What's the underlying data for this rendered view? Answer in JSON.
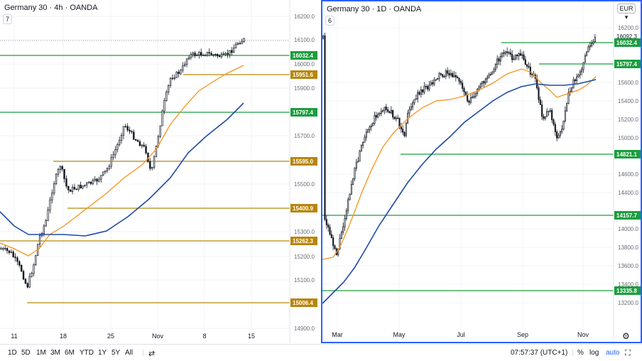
{
  "left_chart": {
    "title": "Germany 30 · 4h · OANDA",
    "indicator_badge": "7",
    "price_ticks": [
      "16200.0",
      "16100.0",
      "16000.0",
      "15900.0",
      "15700.0",
      "15600.0",
      "15500.0",
      "15300.0",
      "15200.0",
      "15100.0",
      "14900.0"
    ],
    "date_ticks": [
      "11",
      "18",
      "25",
      "Nov",
      "8",
      "15"
    ],
    "levels": [
      {
        "label": "16032.4",
        "color": "#1b9e3e"
      },
      {
        "label": "15951.6",
        "color": "#b8860b"
      },
      {
        "label": "15797.4",
        "color": "#1b9e3e"
      },
      {
        "label": "15595.0",
        "color": "#b8860b"
      },
      {
        "label": "15400.9",
        "color": "#b8860b"
      },
      {
        "label": "15262.3",
        "color": "#b8860b"
      },
      {
        "label": "15006.4",
        "color": "#b8860b"
      }
    ]
  },
  "right_chart": {
    "title": "Germany 30 · 1D · OANDA",
    "indicator_badge": "6",
    "currency": "EUR",
    "price_ticks": [
      "16200.0",
      "15600.0",
      "15400.0",
      "15200.0",
      "15000.0",
      "14600.0",
      "14400.0",
      "14000.0",
      "13800.0",
      "13600.0",
      "13400.0",
      "13200.0"
    ],
    "last_price": "16092.3",
    "date_ticks": [
      "Mar",
      "May",
      "Jul",
      "Sep",
      "Nov"
    ],
    "levels": [
      {
        "label": "16032.4",
        "color": "#1b9e3e"
      },
      {
        "label": "15797.4",
        "color": "#1b9e3e"
      },
      {
        "label": "14821.1",
        "color": "#1b9e3e"
      },
      {
        "label": "14157.7",
        "color": "#1b9e3e"
      },
      {
        "label": "13335.8",
        "color": "#1b9e3e"
      }
    ]
  },
  "bottom_bar": {
    "ranges": [
      "1D",
      "5D",
      "1M",
      "3M",
      "6M",
      "YTD",
      "1Y",
      "5Y",
      "All"
    ],
    "time": "07:57:37 (UTC+1)",
    "percent": "%",
    "log": "log",
    "auto": "auto"
  },
  "colors": {
    "up": "#26a69a",
    "down": "#ef5350",
    "candle": "#131722",
    "ma_fast": "#f7931a",
    "ma_slow": "#1e4aa8",
    "green_level": "#1b9e3e",
    "gold_level": "#b8860b",
    "active_border": "#2962ff"
  }
}
